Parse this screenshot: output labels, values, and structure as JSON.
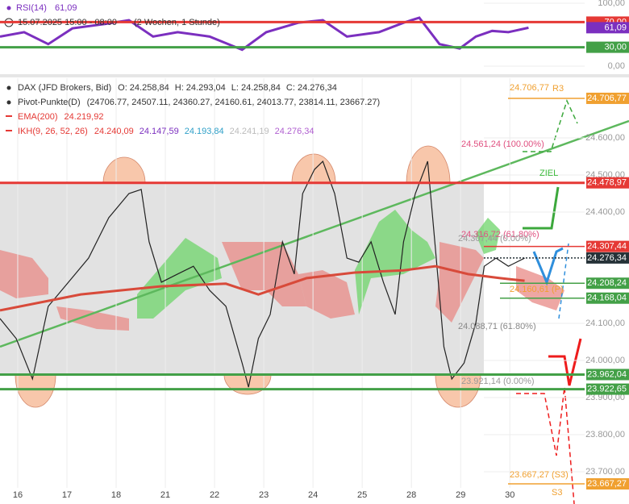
{
  "chart_data": [
    {
      "type": "line",
      "legend": {
        "name": "RSI(14)",
        "value": "61,09",
        "date": "15.07.2025 15:00 - 08:00",
        "period": "(2 Wochen, 1 Stunde)"
      },
      "xlim": [
        -0.36,
        11.52
      ],
      "ylim": [
        0,
        100
      ],
      "yticks": [
        {
          "value": 100,
          "label": "100,00"
        },
        {
          "value": 0,
          "label": "0,00"
        }
      ],
      "series": [
        {
          "name": "RSI(14)",
          "color": "#7b2fbf",
          "x": [
            -0.36,
            0.13,
            0.62,
            1.11,
            1.77,
            2.26,
            2.75,
            3.25,
            3.9,
            4.56,
            5.05,
            5.7,
            6.2,
            6.69,
            7.34,
            7.84,
            8.16,
            8.57,
            8.98,
            9.31,
            9.64,
            9.97,
            10.38
          ],
          "values": [
            47,
            54,
            35,
            60,
            67,
            73,
            47,
            54,
            47,
            26,
            54,
            69,
            73,
            47,
            54,
            69,
            77,
            35,
            28,
            47,
            56,
            54,
            61.09
          ]
        }
      ],
      "levels": {
        "values": [
          70,
          61.09,
          30
        ],
        "value_labels": [
          "70,00",
          "61,09",
          "30,00"
        ],
        "colors": [
          "#e53935",
          "#7b2fbf",
          "#43a047"
        ]
      }
    },
    {
      "type": "line",
      "legend": [
        {
          "name": "DAX (JFD Brokers, Bid)",
          "parts": [
            "O: 24.258,84",
            "H: 24.293,04",
            "L: 24.258,84",
            "C: 24.276,34"
          ]
        },
        {
          "name": "Pivot-Punkte(D)",
          "parts": [
            "(24706.77, 24507.11, 24360.27, 24160.61, 24013.77, 23814.11, 23667.27)"
          ]
        },
        {
          "name": "EMA(200)",
          "parts": [
            "24.219,92"
          ]
        },
        {
          "name": "IKH(9, 26, 52, 26)",
          "parts": [
            "24.240,09",
            "24.147,59",
            "24.193,84",
            "24.241,19",
            "24.276,34"
          ]
        }
      ],
      "xlim": [
        -0.36,
        11.52
      ],
      "xticks": [
        {
          "value": 0,
          "label": "16"
        },
        {
          "value": 1,
          "label": "17"
        },
        {
          "value": 2,
          "label": "18"
        },
        {
          "value": 3,
          "label": "21"
        },
        {
          "value": 4,
          "label": "22"
        },
        {
          "value": 5,
          "label": "23"
        },
        {
          "value": 6,
          "label": "24"
        },
        {
          "value": 7,
          "label": "25"
        },
        {
          "value": 8,
          "label": "28"
        },
        {
          "value": 9,
          "label": "29"
        },
        {
          "value": 10,
          "label": "30"
        }
      ],
      "ylim": [
        23613,
        24761
      ],
      "yticks": [
        {
          "value": 24600,
          "label": "24.600,00"
        },
        {
          "value": 24500,
          "label": "24.500,00"
        },
        {
          "value": 24400,
          "label": "24.400,00"
        },
        {
          "value": 24100,
          "label": "24.100,00"
        },
        {
          "value": 24000,
          "label": "24.000,00"
        },
        {
          "value": 23900,
          "label": "23.900,00"
        },
        {
          "value": 23800,
          "label": "23.800,00"
        },
        {
          "value": 23700,
          "label": "23.700,00"
        }
      ],
      "series": [
        {
          "name": "DAX",
          "color": "#222222",
          "x": [
            -0.36,
            -0.03,
            0.3,
            0.62,
            1.03,
            1.44,
            1.85,
            2.26,
            2.51,
            2.67,
            2.92,
            3.25,
            3.57,
            3.9,
            4.23,
            4.56,
            4.69,
            4.89,
            5.13,
            5.38,
            5.62,
            5.79,
            6.03,
            6.2,
            6.44,
            6.69,
            6.93,
            7.18,
            7.43,
            7.67,
            7.84,
            8.08,
            8.33,
            8.49,
            8.66,
            8.82,
            9.07,
            9.31,
            9.48,
            9.72,
            9.97,
            10.3
          ],
          "values": [
            24113,
            24059,
            23950,
            24146,
            24211,
            24276,
            24385,
            24450,
            24461,
            24320,
            24211,
            24233,
            24254,
            24189,
            24146,
            23993,
            23928,
            24059,
            24124,
            24320,
            24233,
            24450,
            24515,
            24537,
            24450,
            24276,
            24265,
            24320,
            24211,
            24124,
            24320,
            24450,
            24537,
            24298,
            24037,
            23950,
            23993,
            24102,
            24254,
            24276,
            24254,
            24276
          ]
        },
        {
          "name": "EMA(200)",
          "color": "#d84a3a",
          "x": [
            -0.36,
            1.28,
            2.92,
            4.23,
            4.89,
            5.87,
            6.85,
            7.84,
            8.49,
            9.15,
            9.8,
            10.3
          ],
          "values": [
            24135,
            24178,
            24200,
            24207,
            24178,
            24222,
            24237,
            24243,
            24254,
            24233,
            24222,
            24215
          ]
        }
      ],
      "levels": {
        "values": [
          24706.77,
          24478.97,
          24307.44,
          24276.34,
          24208.24,
          24168.04,
          23962.04,
          23922.65,
          23667.27
        ],
        "value_labels": [
          "24.706,77",
          "24.478,97",
          "24.307,44",
          "24.276,34",
          "24.208,24",
          "24.168,04",
          "23.962,04",
          "23.922,65",
          "23.667,27"
        ],
        "colors": [
          "#f0a030",
          "#e53935",
          "#e53935",
          "#263238",
          "#43a047",
          "#43a047",
          "#43a047",
          "#43a047",
          "#f0a030"
        ]
      },
      "annotations": [
        {
          "text": "24.706,77",
          "color": "#f0a030"
        },
        {
          "text": "R3",
          "color": "#f0a030"
        },
        {
          "text": "24.561,24 (100.00%)",
          "color": "#e05080"
        },
        {
          "text": "ZIEL",
          "color": "#3cba3c"
        },
        {
          "text": "24.316,72 (61.80%)",
          "color": "#e05080"
        },
        {
          "text": "24.307,44 (0.00%)",
          "color": "#999999"
        },
        {
          "text": "24.160,61 (P)",
          "color": "#f0a030"
        },
        {
          "text": "24.088,71 (61.80%)",
          "color": "#888888"
        },
        {
          "text": "23.921,14 (0.00%)",
          "color": "#999999"
        },
        {
          "text": "23.667,27 (S3)",
          "color": "#f0a030"
        },
        {
          "text": "S3",
          "color": "#f0a030"
        }
      ]
    }
  ]
}
